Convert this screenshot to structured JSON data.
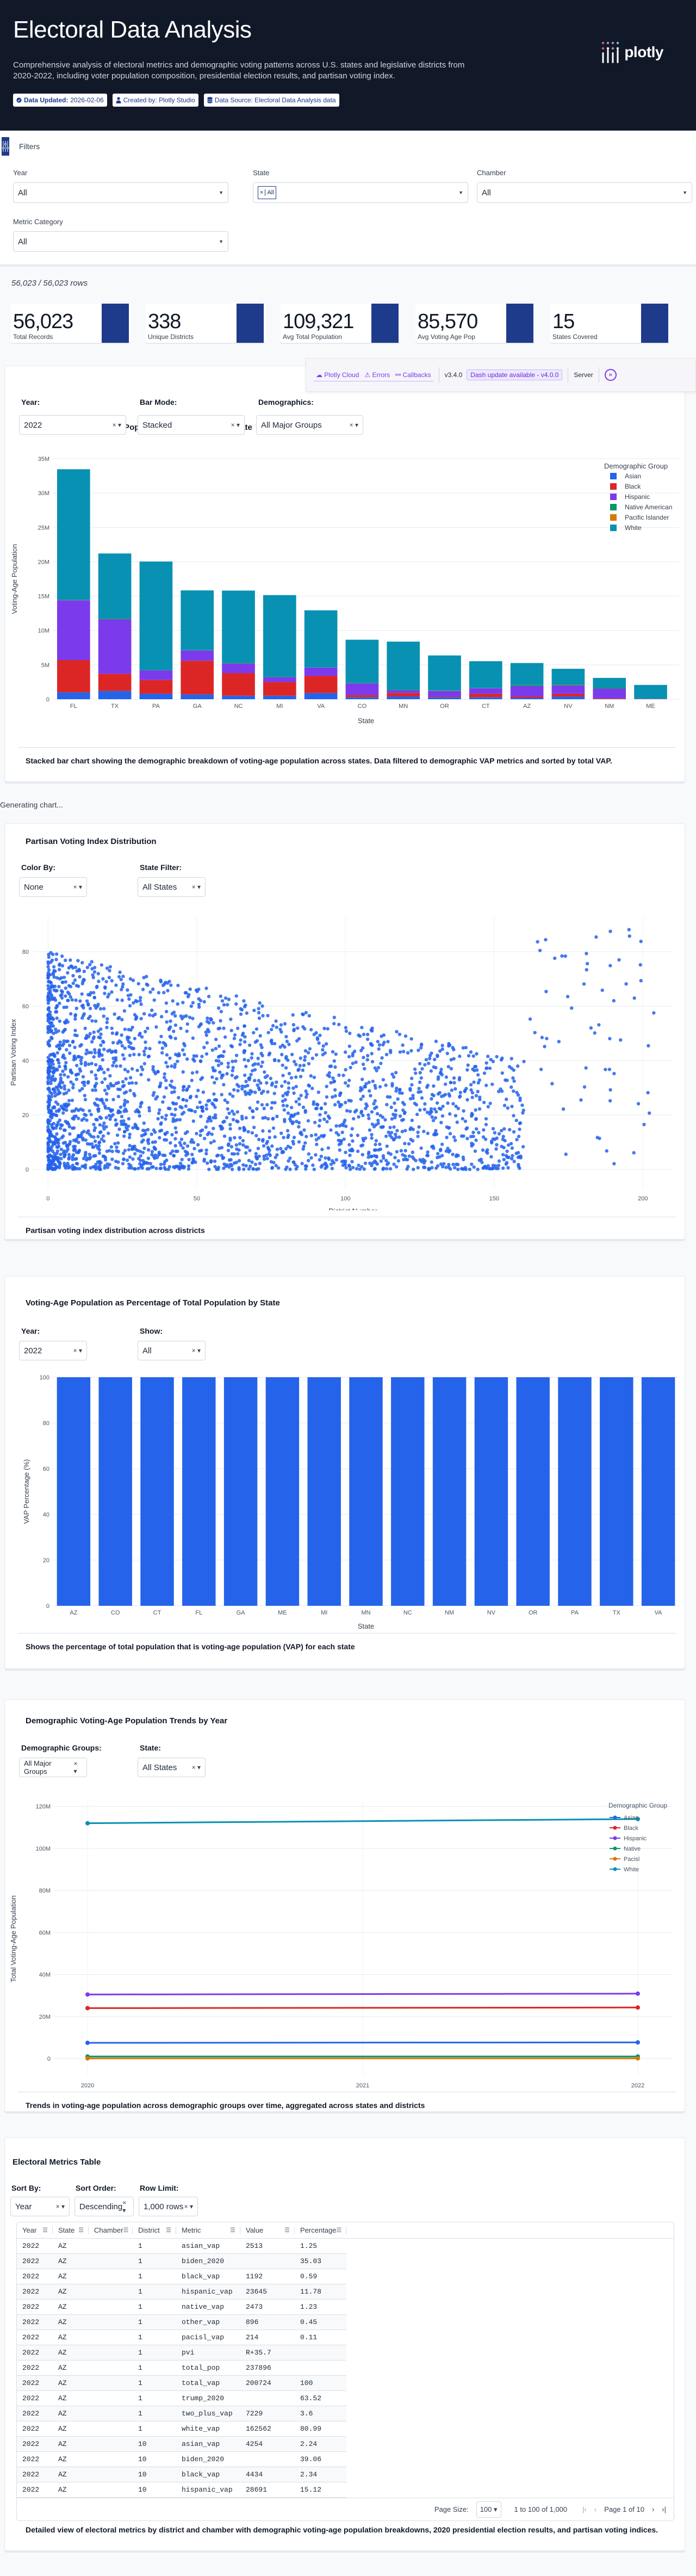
{
  "header": {
    "title": "Electoral Data Analysis",
    "description": "Comprehensive analysis of electoral metrics and demographic voting patterns across U.S. states and legislative districts from 2020-2022, including voter population composition, presidential election results, and partisan voting index.",
    "badges": [
      {
        "icon": "check-circle-icon",
        "bold": "Data Updated:",
        "text": " 2026-02-06"
      },
      {
        "icon": "user-icon",
        "bold": "",
        "text": "Created by: Plotly Studio"
      },
      {
        "icon": "database-icon",
        "bold": "",
        "text": "Data Source: Electoral Data Analysis data"
      }
    ],
    "logo_text": "plotly"
  },
  "filters": {
    "title": "Filters",
    "year": {
      "label": "Year",
      "value": "All"
    },
    "state": {
      "label": "State",
      "chip": "All",
      "chip_remove": "×"
    },
    "chamber": {
      "label": "Chamber",
      "value": "All"
    },
    "metric_category": {
      "label": "Metric Category",
      "value": "All"
    }
  },
  "rows_count": "56,023 / 56,023 rows",
  "kpis": [
    {
      "value": "56,023",
      "label": "Total Records"
    },
    {
      "value": "338",
      "label": "Unique Districts"
    },
    {
      "value": "109,321",
      "label": "Avg Total Population"
    },
    {
      "value": "85,570",
      "label": "Avg Voting Age Pop"
    },
    {
      "value": "15",
      "label": "States Covered"
    }
  ],
  "dash_bar": {
    "plotly_cloud": "Plotly Cloud",
    "errors": "Errors",
    "callbacks": "Callbacks",
    "version": "v3.4.0",
    "update": "Dash update available - v4.0.0",
    "server": "Server",
    "toggle": "»"
  },
  "generating": "Generating chart...",
  "card1": {
    "title": "Demographic Voting-Age Population Composition by State",
    "controls": {
      "year": {
        "label": "Year:",
        "value": "2022"
      },
      "bar_mode": {
        "label": "Bar Mode:",
        "value": "Stacked"
      },
      "demographics": {
        "label": "Demographics:",
        "value": "All Major Groups"
      }
    },
    "footer": "Stacked bar chart showing the demographic breakdown of voting-age population across states. Data filtered to demographic VAP metrics and sorted by total VAP."
  },
  "card2": {
    "title": "Partisan Voting Index Distribution",
    "controls": {
      "color_by": {
        "label": "Color By:",
        "value": "None"
      },
      "state_filter": {
        "label": "State Filter:",
        "value": "All States"
      }
    },
    "footer": "Partisan voting index distribution across districts"
  },
  "card3": {
    "title": "Voting-Age Population as Percentage of Total Population by State",
    "controls": {
      "year": {
        "label": "Year:",
        "value": "2022"
      },
      "show": {
        "label": "Show:",
        "value": "All"
      }
    },
    "footer": "Shows the percentage of total population that is voting-age population (VAP) for each state"
  },
  "card4": {
    "title": "Demographic Voting-Age Population Trends by Year",
    "controls": {
      "groups": {
        "label": "Demographic Groups:",
        "value": "All Major Groups"
      },
      "state": {
        "label": "State:",
        "value": "All States"
      }
    },
    "footer": "Trends in voting-age population across demographic groups over time, aggregated across states and districts"
  },
  "card5": {
    "title": "Electoral Metrics Table",
    "controls": {
      "sort_by": {
        "label": "Sort By:",
        "value": "Year"
      },
      "sort_order": {
        "label": "Sort Order:",
        "value": "Descending"
      },
      "row_limit": {
        "label": "Row Limit:",
        "value": "1,000 rows"
      }
    },
    "columns": [
      "Year",
      "State",
      "Chamber",
      "District",
      "Metric",
      "Value",
      "Percentage"
    ],
    "rows": [
      [
        "2022",
        "AZ",
        "",
        "1",
        "asian_vap",
        "2513",
        "1.25"
      ],
      [
        "2022",
        "AZ",
        "",
        "1",
        "biden_2020",
        "",
        "35.03"
      ],
      [
        "2022",
        "AZ",
        "",
        "1",
        "black_vap",
        "1192",
        "0.59"
      ],
      [
        "2022",
        "AZ",
        "",
        "1",
        "hispanic_vap",
        "23645",
        "11.78"
      ],
      [
        "2022",
        "AZ",
        "",
        "1",
        "native_vap",
        "2473",
        "1.23"
      ],
      [
        "2022",
        "AZ",
        "",
        "1",
        "other_vap",
        "896",
        "0.45"
      ],
      [
        "2022",
        "AZ",
        "",
        "1",
        "pacisl_vap",
        "214",
        "0.11"
      ],
      [
        "2022",
        "AZ",
        "",
        "1",
        "pvi",
        "R+35.7",
        ""
      ],
      [
        "2022",
        "AZ",
        "",
        "1",
        "total_pop",
        "237896",
        ""
      ],
      [
        "2022",
        "AZ",
        "",
        "1",
        "total_vap",
        "200724",
        "100"
      ],
      [
        "2022",
        "AZ",
        "",
        "1",
        "trump_2020",
        "",
        "63.52"
      ],
      [
        "2022",
        "AZ",
        "",
        "1",
        "two_plus_vap",
        "7229",
        "3.6"
      ],
      [
        "2022",
        "AZ",
        "",
        "1",
        "white_vap",
        "162562",
        "80.99"
      ],
      [
        "2022",
        "AZ",
        "",
        "10",
        "asian_vap",
        "4254",
        "2.24"
      ],
      [
        "2022",
        "AZ",
        "",
        "10",
        "biden_2020",
        "",
        "39.06"
      ],
      [
        "2022",
        "AZ",
        "",
        "10",
        "black_vap",
        "4434",
        "2.34"
      ],
      [
        "2022",
        "AZ",
        "",
        "10",
        "hispanic_vap",
        "28691",
        "15.12"
      ]
    ],
    "pager": {
      "page_size_label": "Page Size:",
      "page_size": "100",
      "range": "1 to 100 of 1,000",
      "page_text": "Page 1 of 10"
    },
    "footer": "Detailed view of electoral metrics by district and chamber with demographic voting-age population breakdowns, 2020 presidential election results, and partisan voting indices."
  },
  "colors": {
    "asian": "#2563eb",
    "black": "#dc2626",
    "hispanic": "#7c3aed",
    "native": "#059669",
    "pacific": "#d97706",
    "white": "#0891b2",
    "brand": "#1e3a8a",
    "header_bg": "#111827"
  },
  "chart_data": [
    {
      "type": "bar",
      "title": "Demographic Voting-Age Population Composition by State",
      "xlabel": "State",
      "ylabel": "Voting-Age Population",
      "ylim": [
        0,
        35000000
      ],
      "yticks": [
        "0",
        "5M",
        "10M",
        "15M",
        "20M",
        "25M",
        "30M",
        "35M"
      ],
      "barmode": "stack",
      "legend_title": "Demographic Group",
      "categories": [
        "FL",
        "TX",
        "PA",
        "GA",
        "NC",
        "MI",
        "VA",
        "CO",
        "MN",
        "OR",
        "CT",
        "AZ",
        "NV",
        "NM",
        "ME"
      ],
      "series": [
        {
          "name": "Asian",
          "values": [
            1000000,
            1200000,
            800000,
            700000,
            500000,
            500000,
            900000,
            300000,
            400000,
            300000,
            300000,
            200000,
            400000,
            50000,
            20000
          ]
        },
        {
          "name": "Black",
          "values": [
            4700000,
            2500000,
            2000000,
            4900000,
            3300000,
            2000000,
            2500000,
            300000,
            500000,
            100000,
            500000,
            200000,
            400000,
            100000,
            20000
          ]
        },
        {
          "name": "Hispanic",
          "values": [
            8700000,
            7900000,
            1400000,
            1500000,
            1400000,
            700000,
            1200000,
            1700000,
            400000,
            800000,
            800000,
            1500000,
            1200000,
            1400000,
            30000
          ]
        },
        {
          "name": "Native American",
          "values": [
            50000,
            80000,
            30000,
            30000,
            100000,
            50000,
            30000,
            50000,
            80000,
            50000,
            30000,
            150000,
            100000,
            150000,
            10000
          ]
        },
        {
          "name": "Pacific Islander",
          "values": [
            20000,
            30000,
            10000,
            10000,
            10000,
            5000,
            10000,
            10000,
            5000,
            20000,
            5000,
            20000,
            30000,
            5000,
            2000
          ]
        },
        {
          "name": "White",
          "values": [
            19000000,
            9500000,
            15800000,
            8700000,
            10500000,
            11900000,
            8300000,
            6300000,
            7000000,
            5100000,
            3900000,
            3200000,
            2300000,
            1400000,
            2000000
          ]
        }
      ]
    },
    {
      "type": "scatter",
      "title": "Partisan Voting Index Distribution",
      "xlabel": "District Number",
      "ylabel": "Partisan Voting Index",
      "xlim": [
        -5,
        210
      ],
      "ylim": [
        -7,
        93
      ],
      "xticks": [
        0,
        50,
        100,
        150,
        200
      ],
      "yticks": [
        0,
        20,
        40,
        60,
        80
      ],
      "note": "~3000 points; dense at low district numbers and low PVI, sparse toward districts 150-205; cluster of high PVI (75-90) near districts 175-205"
    },
    {
      "type": "bar",
      "title": "Voting-Age Population as Percentage of Total Population by State",
      "xlabel": "State",
      "ylabel": "VAP Percentage (%)",
      "ylim": [
        0,
        100
      ],
      "yticks": [
        0,
        20,
        40,
        60,
        80,
        100
      ],
      "categories": [
        "AZ",
        "CO",
        "CT",
        "FL",
        "GA",
        "ME",
        "MI",
        "MN",
        "NC",
        "NM",
        "NV",
        "OR",
        "PA",
        "TX",
        "VA"
      ],
      "values": [
        100,
        100,
        100,
        100,
        100,
        100,
        100,
        100,
        100,
        100,
        100,
        100,
        100,
        100,
        100
      ]
    },
    {
      "type": "line",
      "title": "Demographic Voting-Age Population Trends by Year",
      "xlabel": "Year",
      "ylabel": "Total Voting-Age Population",
      "x": [
        2020,
        2022
      ],
      "xticks": [
        "2020",
        "2021",
        "2022"
      ],
      "ylim": [
        -8000000,
        122000000
      ],
      "yticks": [
        "0",
        "20M",
        "40M",
        "60M",
        "80M",
        "100M",
        "120M"
      ],
      "legend_title": "Demographic Group",
      "series": [
        {
          "name": "Asian",
          "values": [
            7500000,
            7700000
          ]
        },
        {
          "name": "Black",
          "values": [
            24000000,
            24300000
          ]
        },
        {
          "name": "Hispanic",
          "values": [
            30500000,
            30900000
          ]
        },
        {
          "name": "Native",
          "values": [
            1000000,
            1000000
          ]
        },
        {
          "name": "Pacisl",
          "values": [
            100000,
            100000
          ]
        },
        {
          "name": "White",
          "values": [
            112000000,
            114000000
          ]
        }
      ]
    }
  ]
}
